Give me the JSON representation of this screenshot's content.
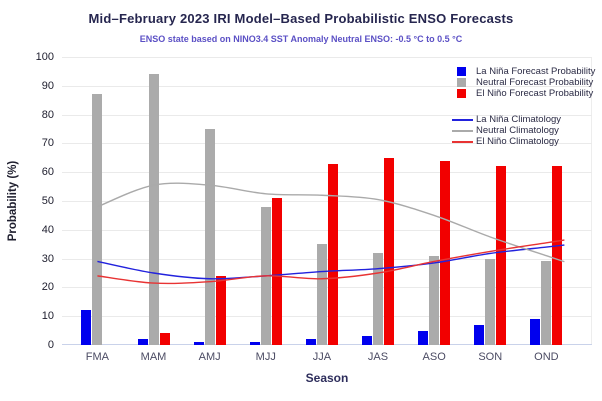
{
  "title": "Mid–February 2023 IRI Model–Based Probabilistic ENSO Forecasts",
  "subtitle": "ENSO state based on NINO3.4 SST Anomaly Neutral ENSO: -0.5 °C to 0.5 °C",
  "colors": {
    "title": "#26264f",
    "subtitle": "#5b50c5",
    "gridline": "#eaeaea",
    "x_axis_line": "#c9d2ea",
    "la_nina": "#0000ee",
    "neutral": "#ababab",
    "el_nino": "#f20000",
    "la_nina_climatology": "#2222dd",
    "neutral_climatology": "#aaaaaa",
    "el_nino_climatology": "#e83333"
  },
  "chart_data": {
    "type": "bar",
    "categories": [
      "FMA",
      "MAM",
      "AMJ",
      "MJJ",
      "JJA",
      "JAS",
      "ASO",
      "SON",
      "OND"
    ],
    "series": [
      {
        "id": "la-nina-forecast",
        "name": "La Niña Forecast Probability",
        "type": "bar",
        "color": "#0000ee",
        "values": [
          12,
          2,
          1,
          1,
          2,
          3,
          5,
          7,
          9
        ]
      },
      {
        "id": "neutral-forecast",
        "name": "Neutral Forecast Probability",
        "type": "bar",
        "color": "#ababab",
        "values": [
          87,
          94,
          75,
          48,
          35,
          32,
          31,
          30,
          29
        ]
      },
      {
        "id": "el-nino-forecast",
        "name": "El Niño Forecast Probability",
        "type": "bar",
        "color": "#f20000",
        "values": [
          0,
          4,
          24,
          51,
          63,
          65,
          64,
          62,
          62
        ]
      },
      {
        "id": "la-nina-climatology",
        "name": "La Niña Climatology",
        "type": "line",
        "color": "#2222dd",
        "values": [
          29,
          25,
          23,
          24,
          25.5,
          26.5,
          28.5,
          31.8,
          34
        ]
      },
      {
        "id": "neutral-climatology",
        "name": "Neutral Climatology",
        "type": "line",
        "color": "#aaaaaa",
        "values": [
          48,
          55.5,
          55.5,
          52.5,
          52,
          50.5,
          45,
          37.5,
          31
        ]
      },
      {
        "id": "el-nino-climatology",
        "name": "El Niño Climatology",
        "type": "line",
        "color": "#e83333",
        "values": [
          24,
          21.5,
          22,
          24,
          23,
          25,
          29,
          32.5,
          35.5
        ]
      }
    ],
    "xlabel": "Season",
    "ylabel": "Probability (%)",
    "ylim": [
      0,
      100
    ],
    "yticks": [
      0,
      10,
      20,
      30,
      40,
      50,
      60,
      70,
      80,
      90,
      100
    ],
    "grid": "horizontal",
    "legend_position": "top-right-inside"
  }
}
